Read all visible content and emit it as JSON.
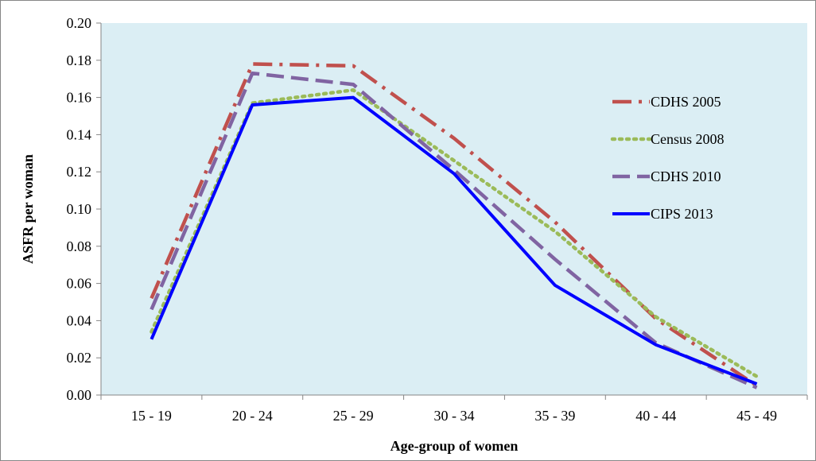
{
  "chart_data": {
    "type": "line",
    "title": "",
    "xlabel": "Age-group of women",
    "ylabel": "ASFR per woman",
    "categories": [
      "15 - 19",
      "20 - 24",
      "25 - 29",
      "30 - 34",
      "35 - 39",
      "40 - 44",
      "45 - 49"
    ],
    "ylim": [
      0,
      0.2
    ],
    "yticks": [
      "0.00",
      "0.02",
      "0.04",
      "0.06",
      "0.08",
      "0.10",
      "0.12",
      "0.14",
      "0.16",
      "0.18",
      "0.20"
    ],
    "grid": false,
    "plot_background": "#DBEEF4",
    "legend_position": "right",
    "series": [
      {
        "name": "CDHS 2005",
        "color": "#C0504D",
        "style": "dash-dot",
        "values": [
          0.052,
          0.178,
          0.177,
          0.138,
          0.093,
          0.041,
          0.005
        ]
      },
      {
        "name": "Census 2008",
        "color": "#9BBB59",
        "style": "dotted",
        "values": [
          0.034,
          0.157,
          0.164,
          0.126,
          0.088,
          0.042,
          0.01
        ]
      },
      {
        "name": "CDHS 2010",
        "color": "#8064A2",
        "style": "dashed",
        "values": [
          0.046,
          0.173,
          0.167,
          0.121,
          0.073,
          0.028,
          0.004
        ]
      },
      {
        "name": "CIPS 2013",
        "color": "#0000FF",
        "style": "solid",
        "values": [
          0.03,
          0.156,
          0.16,
          0.119,
          0.059,
          0.027,
          0.006
        ]
      }
    ]
  }
}
